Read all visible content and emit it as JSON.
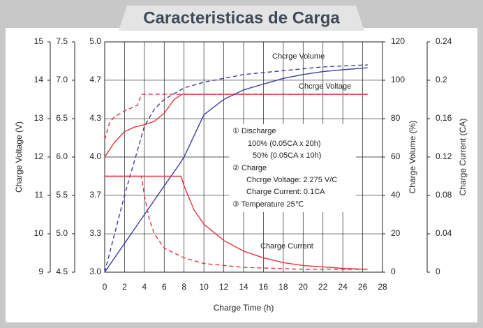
{
  "chart_data": {
    "type": "line",
    "title": "Caracteristicas de Carga",
    "xlabel": "Charge Time (h)",
    "xlim": [
      0,
      28
    ],
    "xticks": [
      0,
      2,
      4,
      6,
      8,
      10,
      12,
      14,
      16,
      18,
      20,
      22,
      24,
      26,
      28
    ],
    "grid": true,
    "y_axes": [
      {
        "label": "Charge Voltage (V)",
        "lim": [
          9,
          15
        ],
        "ticks": [
          9,
          10,
          11,
          12,
          13,
          14,
          15
        ]
      },
      {
        "lim": [
          4.5,
          7.5
        ],
        "ticks": [
          {
            "value": 4.5,
            "label": "4.5"
          },
          {
            "value": 5,
            "label": "5.0"
          },
          5.5,
          {
            "value": 6,
            "label": "6.0"
          },
          6.5,
          {
            "value": 7,
            "label": "7.0"
          },
          7.5
        ]
      },
      {
        "lim": [
          3,
          5
        ],
        "ticks": [
          {
            "value": 3,
            "label": "3.0"
          },
          {
            "value": 3.333,
            "label": "3.3"
          },
          {
            "value": 3.667,
            "label": "3.7"
          },
          {
            "value": 4,
            "label": "4.0"
          },
          {
            "value": 4.333,
            "label": "4.3"
          },
          {
            "value": 4.667,
            "label": "4.7"
          },
          {
            "value": 5,
            "label": "5.0"
          }
        ]
      },
      {
        "label": "Charge Volume (%)",
        "lim": [
          0,
          120
        ],
        "ticks": [
          0,
          20,
          40,
          60,
          80,
          100,
          120
        ]
      },
      {
        "label": "Charge Current (CA)",
        "lim": [
          0,
          0.24
        ],
        "ticks": [
          0,
          0.04,
          0.08,
          0.12,
          0.16,
          0.2,
          0.24
        ]
      }
    ],
    "series": [
      {
        "axis": 2,
        "color": "#e8343a",
        "dash": false,
        "x": [
          0,
          1,
          2,
          3,
          4,
          5,
          6,
          7,
          7.8,
          26.5
        ],
        "values": [
          4.0,
          4.13,
          4.22,
          4.26,
          4.28,
          4.31,
          4.38,
          4.5,
          4.545,
          4.545
        ]
      },
      {
        "axis": 2,
        "color": "#e8343a",
        "dash": true,
        "x": [
          0,
          0.5,
          1,
          2,
          3.3,
          3.7,
          26.5
        ],
        "values": [
          4.15,
          4.3,
          4.35,
          4.4,
          4.45,
          4.545,
          4.545
        ]
      },
      {
        "axis": 3,
        "color": "#3b3fa0",
        "dash": false,
        "x": [
          0,
          2,
          4,
          6,
          7.5,
          8,
          10,
          12,
          14,
          16,
          18,
          20,
          22,
          24,
          26.5
        ],
        "values": [
          0,
          15,
          30,
          45,
          56,
          60,
          82,
          90,
          95,
          98,
          101,
          103,
          104.5,
          105.5,
          106.5
        ]
      },
      {
        "axis": 3,
        "color": "#3b3fa0",
        "dash": true,
        "x": [
          0,
          1,
          2,
          3,
          4,
          5,
          6,
          8,
          10,
          14,
          18,
          22,
          26.5
        ],
        "values": [
          0,
          20,
          40,
          58,
          76,
          85,
          90,
          96,
          99,
          103,
          105,
          107,
          108
        ]
      },
      {
        "axis": 4,
        "color": "#e8343a",
        "dash": false,
        "x": [
          0,
          7.7,
          8,
          9,
          10,
          12,
          14,
          16,
          18,
          20,
          24,
          26.5
        ],
        "values": [
          0.1,
          0.1,
          0.09,
          0.065,
          0.05,
          0.033,
          0.022,
          0.015,
          0.01,
          0.007,
          0.004,
          0.003
        ]
      },
      {
        "axis": 4,
        "color": "#e8343a",
        "dash": true,
        "x": [
          0,
          3.7,
          4,
          4.5,
          5,
          6,
          8,
          10,
          14,
          20,
          26.5
        ],
        "values": [
          0.1,
          0.1,
          0.08,
          0.055,
          0.04,
          0.025,
          0.015,
          0.009,
          0.005,
          0.003,
          0.003
        ]
      }
    ],
    "annotations": [
      "Chcrge Volume",
      "Chcrge Voltage",
      "Charge Current"
    ],
    "notes": [
      "① Discharge",
      "100% (0.05CA x 20h)",
      "50% (0.05CA x 10h)",
      "② Charge",
      "Chcrge Voltage: 2.275 V/C",
      "Charge Current: 0.1CA",
      "③ Temperature 25℃"
    ]
  }
}
